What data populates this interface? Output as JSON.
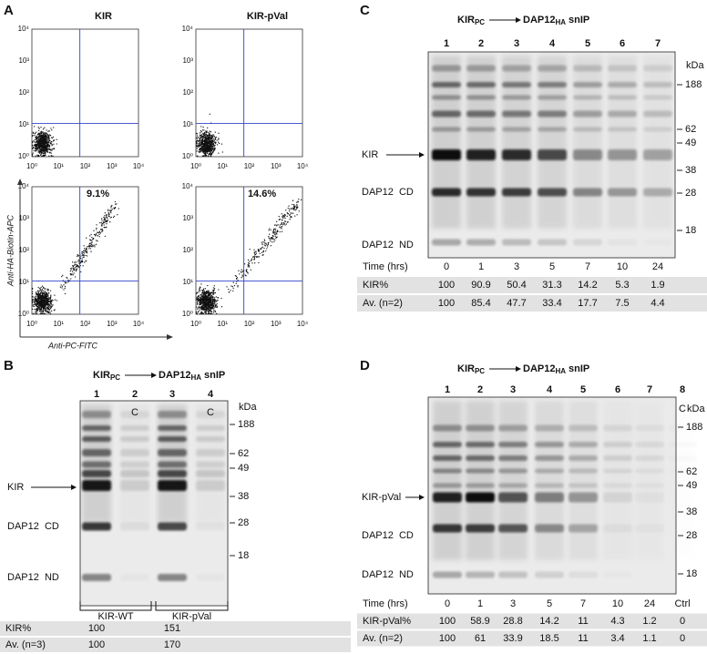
{
  "A": {
    "label": "A",
    "columns": [
      "KIR",
      "KIR-pVal"
    ],
    "percentages": [
      "9.1%",
      "14.6%"
    ],
    "y_axis_label": "Anti-HA-Biotin-APC",
    "x_axis_label": "Anti-PC-FITC",
    "ticks": [
      "10⁰",
      "10¹",
      "10²",
      "10³",
      "10⁴"
    ]
  },
  "B": {
    "label": "B",
    "title": {
      "a": "KIR",
      "a_sub": "PC",
      "b": "DAP12",
      "b_sub": "HA",
      "c": "snIP"
    },
    "lanes": [
      "1",
      "2",
      "3",
      "4"
    ],
    "control_marks": [
      "C",
      "C"
    ],
    "kda": "kDa",
    "markers": [
      "188",
      "62",
      "49",
      "38",
      "28",
      "18"
    ],
    "band_labels": [
      "KIR",
      "DAP12  CD",
      "DAP12  ND"
    ],
    "groups": [
      "KIR-WT",
      "KIR-pVal"
    ],
    "table": [
      [
        "KIR%",
        "100",
        "151"
      ],
      [
        "Av. (n=3)",
        "100",
        "170"
      ]
    ]
  },
  "C": {
    "label": "C",
    "title": {
      "a": "KIR",
      "a_sub": "PC",
      "b": "DAP12",
      "b_sub": "HA",
      "c": "snIP"
    },
    "lanes": [
      "1",
      "2",
      "3",
      "4",
      "5",
      "6",
      "7"
    ],
    "kda": "kDa",
    "markers": [
      "188",
      "62",
      "49",
      "38",
      "28",
      "18"
    ],
    "band_labels": [
      "KIR",
      "DAP12  CD",
      "DAP12  ND"
    ],
    "table": [
      [
        "Time (hrs)",
        "0",
        "1",
        "3",
        "5",
        "7",
        "10",
        "24"
      ],
      [
        "KIR%",
        "100",
        "90.9",
        "50.4",
        "31.3",
        "14.2",
        "5.3",
        "1.9"
      ],
      [
        "Av. (n=2)",
        "100",
        "85.4",
        "47.7",
        "33.4",
        "17.7",
        "7.5",
        "4.4"
      ]
    ]
  },
  "D": {
    "label": "D",
    "title": {
      "a": "KIR",
      "a_sub": "PC",
      "b": "DAP12",
      "b_sub": "HA",
      "c": "snIP"
    },
    "lanes": [
      "1",
      "2",
      "3",
      "4",
      "5",
      "6",
      "7",
      "8"
    ],
    "control_marks": [
      "C"
    ],
    "kda": "kDa",
    "markers": [
      "188",
      "62",
      "49",
      "38",
      "28",
      "18"
    ],
    "band_labels": [
      "KIR-pVal",
      "DAP12  CD",
      "DAP12  ND"
    ],
    "table": [
      [
        "Time (hrs)",
        "0",
        "1",
        "3",
        "5",
        "7",
        "10",
        "24",
        "Ctrl"
      ],
      [
        "KIR-pVal%",
        "100",
        "58.9",
        "28.8",
        "14.2",
        "11",
        "4.3",
        "1.2",
        "0"
      ],
      [
        "Av. (n=2)",
        "100",
        "61",
        "33.9",
        "18.5",
        "11",
        "3.4",
        "1.1",
        "0"
      ]
    ]
  }
}
